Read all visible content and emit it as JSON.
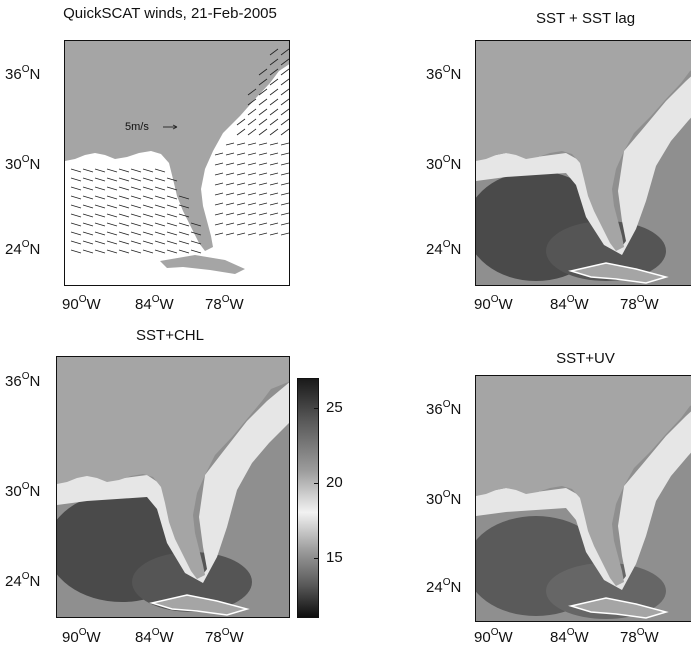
{
  "panels": {
    "winds": {
      "title": "QuickSCAT winds, 21-Feb-2005",
      "scale_label": "5m/s"
    },
    "sst_lag": {
      "title": "SST + SST lag"
    },
    "sst_chl": {
      "title": "SST+CHL"
    },
    "sst_uv": {
      "title": "SST+UV"
    }
  },
  "axes": {
    "lat_labels": [
      {
        "deg": "36",
        "hem": "N"
      },
      {
        "deg": "30",
        "hem": "N"
      },
      {
        "deg": "24",
        "hem": "N"
      }
    ],
    "lon_labels": [
      {
        "deg": "90",
        "hem": "W"
      },
      {
        "deg": "84",
        "hem": "W"
      },
      {
        "deg": "78",
        "hem": "W"
      }
    ]
  },
  "colorbar": {
    "ticks": [
      "25",
      "20",
      "15"
    ],
    "tick_values": [
      25,
      20,
      15
    ],
    "range": [
      11,
      27
    ]
  },
  "colors": {
    "land": "#a5a5a5",
    "ocean_dark": "#4a4a4a",
    "ocean_mid": "#8f8f8f",
    "coastal_light": "#e6e6e6",
    "arrow": "#222222"
  }
}
